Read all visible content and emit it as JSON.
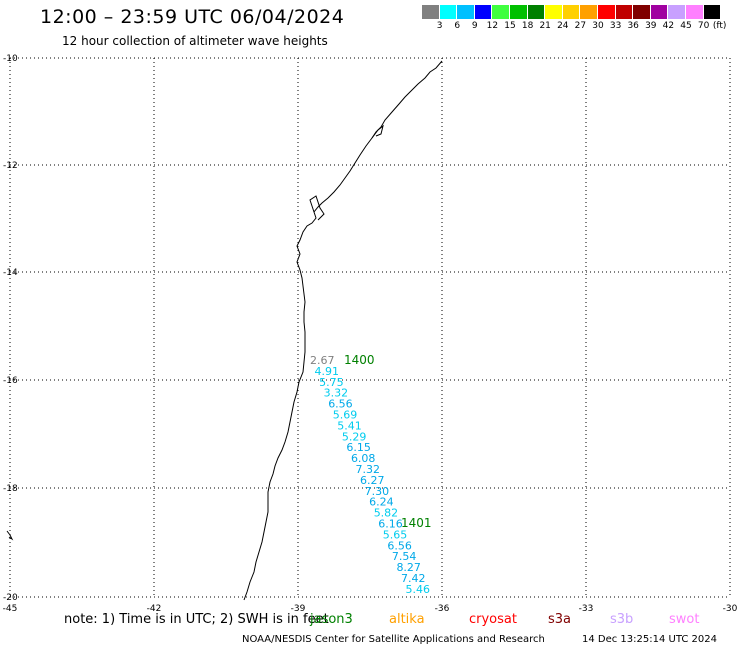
{
  "header": {
    "title": "12:00 – 23:59 UTC 06/04/2024",
    "subtitle": "12 hour collection of altimeter wave heights"
  },
  "colorbar": {
    "unit": "(ft)",
    "labels": [
      "3",
      "6",
      "9",
      "12",
      "15",
      "18",
      "21",
      "24",
      "27",
      "30",
      "33",
      "36",
      "39",
      "42",
      "45",
      "70"
    ],
    "colors": [
      "#808080",
      "#00ffff",
      "#00c0ff",
      "#0000ff",
      "#40ff40",
      "#00c000",
      "#008000",
      "#ffff00",
      "#ffd000",
      "#ffa000",
      "#ff0000",
      "#c00000",
      "#800000",
      "#a000a0",
      "#c8a0ff",
      "#ff80ff",
      "#000000"
    ]
  },
  "axes": {
    "lat_labels": [
      "-10",
      "-12",
      "-14",
      "-16",
      "-18",
      "-20"
    ],
    "lon_labels": [
      "-45",
      "-42",
      "-39",
      "-36",
      "-33",
      "-30"
    ]
  },
  "tracks": [
    {
      "label": "1400",
      "color": "#008000"
    },
    {
      "label": "1401",
      "color": "#008000"
    }
  ],
  "observations": [
    {
      "value": "2.67",
      "color": "#808080"
    },
    {
      "value": "4.91",
      "color": "#00ccee"
    },
    {
      "value": "5.75",
      "color": "#00ccee"
    },
    {
      "value": "3.32",
      "color": "#00ccee"
    },
    {
      "value": "6.56",
      "color": "#00a8e8"
    },
    {
      "value": "5.69",
      "color": "#00ccee"
    },
    {
      "value": "5.41",
      "color": "#00ccee"
    },
    {
      "value": "5.29",
      "color": "#00ccee"
    },
    {
      "value": "6.15",
      "color": "#00a8e8"
    },
    {
      "value": "6.08",
      "color": "#00a8e8"
    },
    {
      "value": "7.32",
      "color": "#00a8e8"
    },
    {
      "value": "6.27",
      "color": "#00a8e8"
    },
    {
      "value": "7.30",
      "color": "#00a8e8"
    },
    {
      "value": "6.24",
      "color": "#00a8e8"
    },
    {
      "value": "5.82",
      "color": "#00ccee"
    },
    {
      "value": "6.16",
      "color": "#00a8e8"
    },
    {
      "value": "5.65",
      "color": "#00ccee"
    },
    {
      "value": "6.56",
      "color": "#00a8e8"
    },
    {
      "value": "7.54",
      "color": "#00a8e8"
    },
    {
      "value": "8.27",
      "color": "#00a8e8"
    },
    {
      "value": "7.42",
      "color": "#00a8e8"
    },
    {
      "value": "5.46",
      "color": "#00ccee"
    }
  ],
  "footer": {
    "note": "note:  1) Time is in UTC; 2) SWH is in feet",
    "satellites": [
      {
        "name": "jason3",
        "color": "#008000"
      },
      {
        "name": "altika",
        "color": "#ffa000"
      },
      {
        "name": "cryosat",
        "color": "#ff0000"
      },
      {
        "name": "s3a",
        "color": "#800000"
      },
      {
        "name": "s3b",
        "color": "#c8a0ff"
      },
      {
        "name": "swot",
        "color": "#ff80ff"
      }
    ],
    "credit": "NOAA/NESDIS Center for Satellite Applications and Research",
    "timestamp": "14 Dec 13:25:14 UTC 2024"
  }
}
